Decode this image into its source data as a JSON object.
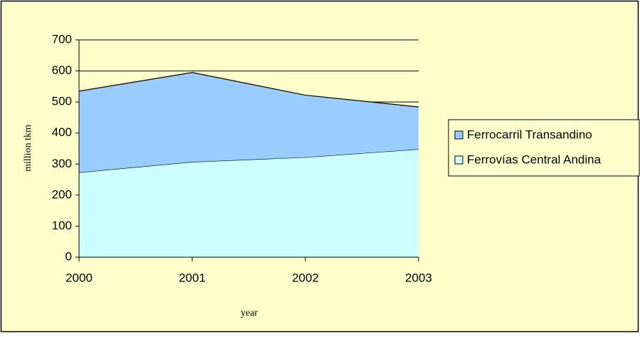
{
  "chart_data": {
    "type": "stacked_area",
    "x_label": "year",
    "y_label": "million tkm",
    "categories": [
      "2000",
      "2001",
      "2002",
      "2003"
    ],
    "series": [
      {
        "name": "Ferrovías Central Andina",
        "color": "#ccffff",
        "values": [
          273,
          307,
          322,
          348
        ]
      },
      {
        "name": "Ferrocarril Transandino",
        "color": "#99ccff",
        "values": [
          262,
          288,
          200,
          136
        ]
      }
    ],
    "ylim": [
      0,
      700
    ],
    "yticks": [
      0,
      100,
      200,
      300,
      400,
      500,
      600,
      700
    ],
    "grid": true
  }
}
